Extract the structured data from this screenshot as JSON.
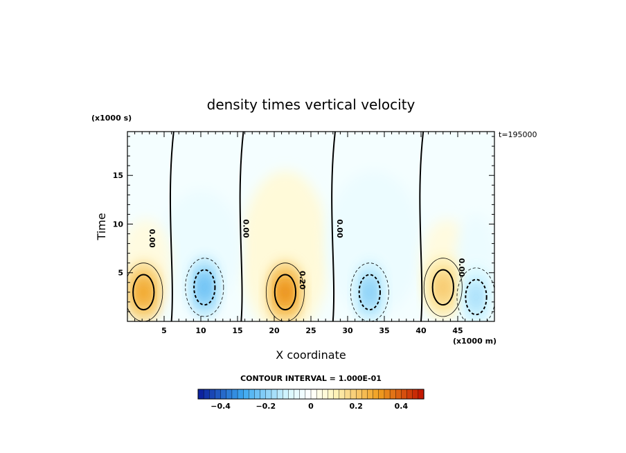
{
  "chart_data": {
    "type": "heatmap",
    "title": "density times vertical velocity",
    "xlabel": "X coordinate",
    "ylabel": "Time",
    "x_unit": "(x1000 m)",
    "y_unit": "(x1000 s)",
    "time_label": "t=195000",
    "xlim": [
      0,
      50
    ],
    "ylim": [
      0,
      19.5
    ],
    "x_ticks": [
      5,
      10,
      15,
      20,
      25,
      30,
      35,
      40,
      45
    ],
    "y_ticks": [
      5,
      10,
      15
    ],
    "contour_interval": 0.1,
    "contour_interval_text": "CONTOUR INTERVAL = 1.000E-01",
    "zero_contour_label": "0.00",
    "labeled_contour_value": "0.20",
    "colorbar": {
      "min": -0.5,
      "max": 0.5,
      "n_bins": 40,
      "ticks": [
        -0.4,
        -0.2,
        0,
        0.2,
        0.4
      ],
      "tick_labels": [
        "−0.4",
        "−0.2",
        "0",
        "0.2",
        "0.4"
      ]
    },
    "features": [
      {
        "sign": "positive",
        "x": 2.2,
        "t": 3.0,
        "peak": 0.35
      },
      {
        "sign": "negative",
        "x": 10.5,
        "t": 3.5,
        "peak": -0.3
      },
      {
        "sign": "positive",
        "x": 21.5,
        "t": 3.0,
        "peak": 0.4
      },
      {
        "sign": "negative",
        "x": 33.0,
        "t": 3.0,
        "peak": -0.25
      },
      {
        "sign": "positive",
        "x": 43.0,
        "t": 3.5,
        "peak": 0.25
      },
      {
        "sign": "negative",
        "x": 47.5,
        "t": 2.5,
        "peak": -0.2
      }
    ],
    "colors": {
      "negative_strong": "#0a1a9a",
      "negative_mid": "#3ca8f0",
      "negative_weak": "#d8f8ff",
      "zero": "#ffffff",
      "positive_weak": "#fff6c0",
      "positive_mid": "#f0a020",
      "positive_strong": "#c01000"
    }
  }
}
